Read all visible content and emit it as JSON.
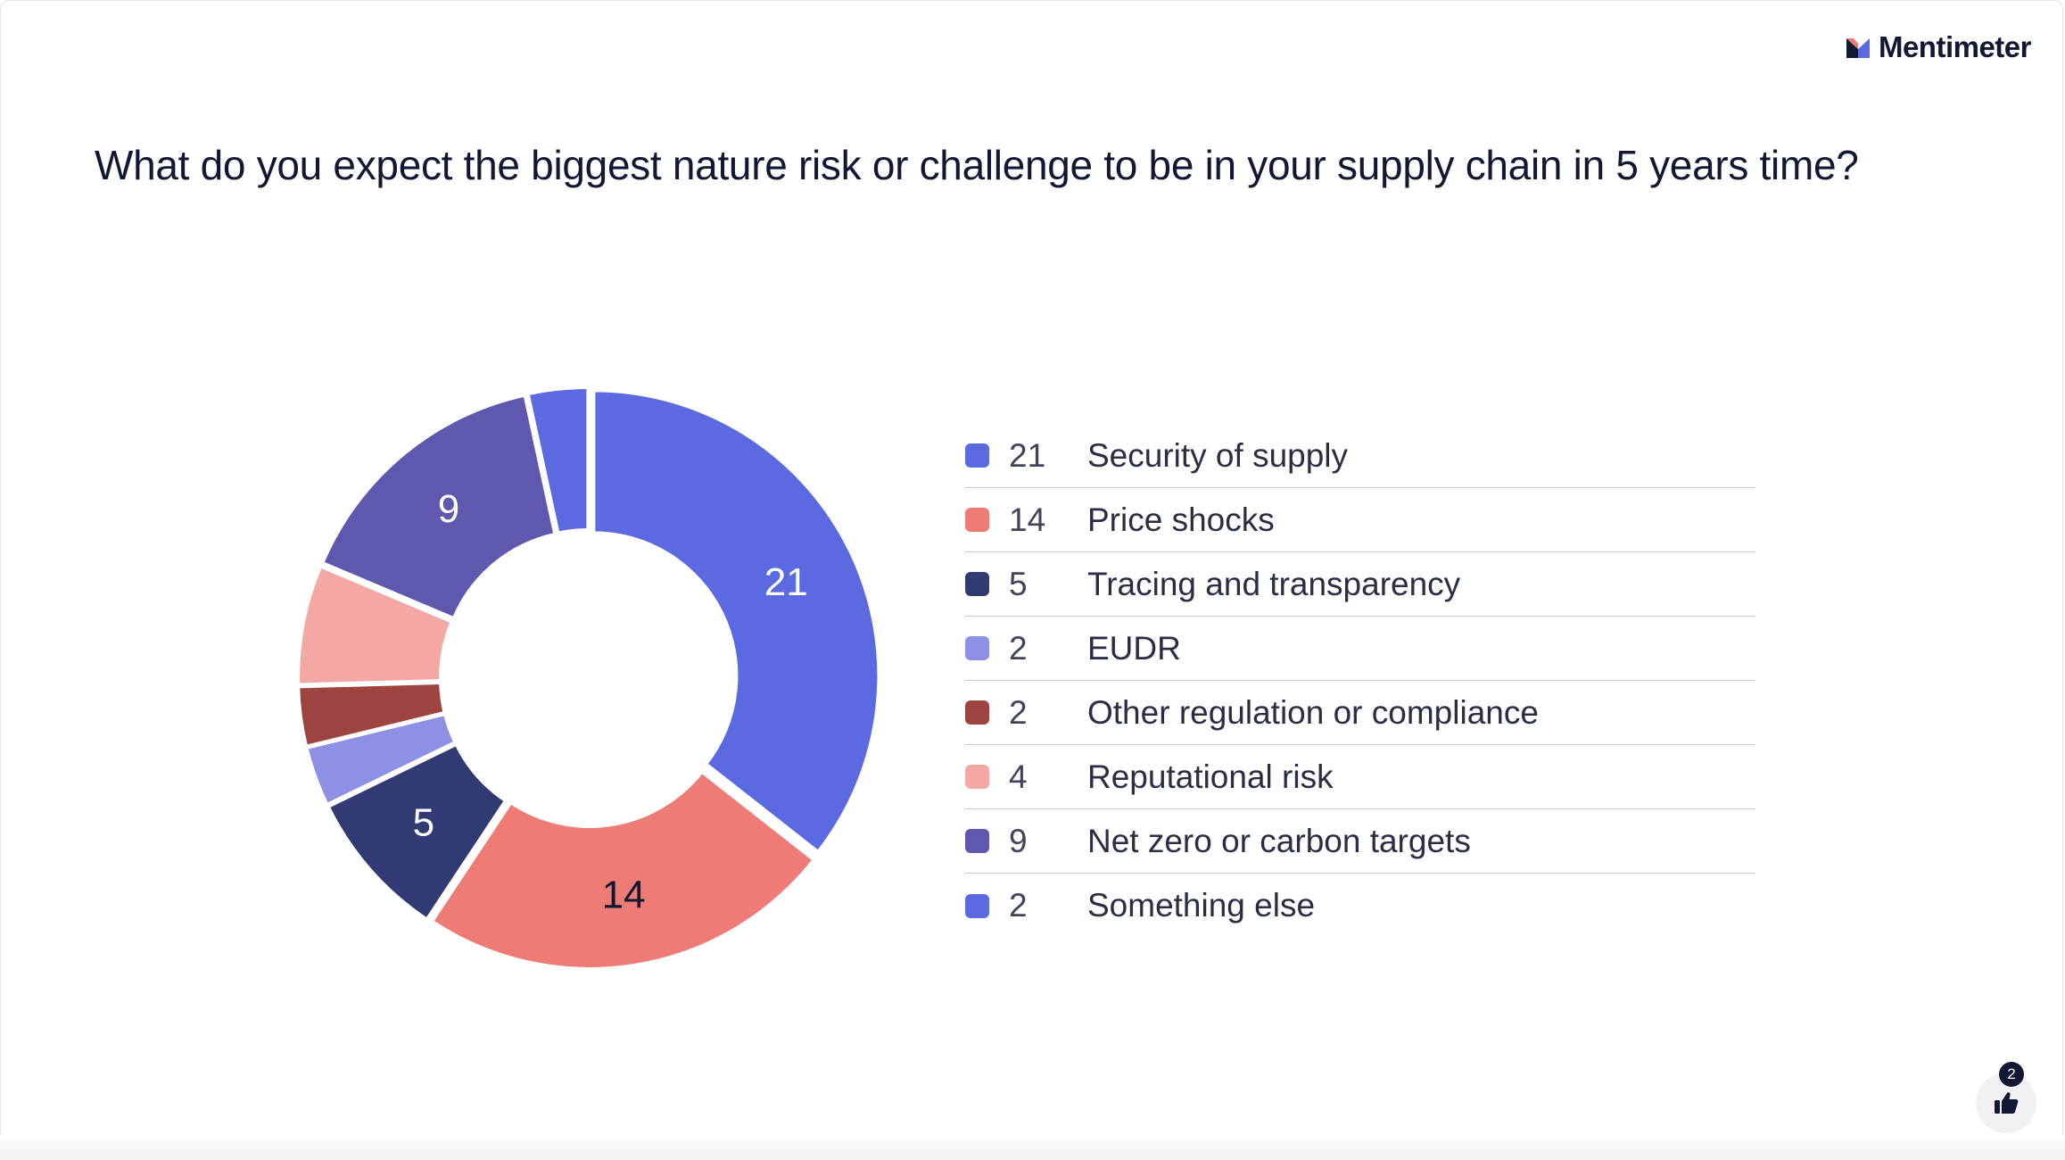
{
  "brand": {
    "name": "Mentimeter",
    "icon": "mentimeter-logo-icon"
  },
  "question": "What do you expect the biggest nature risk or challenge to be in your supply chain in 5 years time?",
  "reactions": {
    "icon": "thumbs-up-icon",
    "count": "2"
  },
  "chart_data": {
    "type": "pie",
    "style": "donut",
    "title": "",
    "legend_position": "right",
    "slices": [
      {
        "label": "Security of supply",
        "value": 21,
        "color": "#5B6AE0",
        "label_color": "#ffffff"
      },
      {
        "label": "Price shocks",
        "value": 14,
        "color": "#EE7B75",
        "label_color": "#101834"
      },
      {
        "label": "Tracing and transparency",
        "value": 5,
        "color": "#323A73",
        "label_color": "#ffffff"
      },
      {
        "label": "EUDR",
        "value": 2,
        "color": "#8E90E6",
        "label_color": "#101834"
      },
      {
        "label": "Other regulation or compliance",
        "value": 2,
        "color": "#9E4440",
        "label_color": "#ffffff"
      },
      {
        "label": "Reputational risk",
        "value": 4,
        "color": "#F3A8A4",
        "label_color": "#101834"
      },
      {
        "label": "Net zero or carbon targets",
        "value": 9,
        "color": "#5E59AE",
        "label_color": "#ffffff"
      },
      {
        "label": "Something else",
        "value": 2,
        "color": "#5B6AE0",
        "label_color": "#ffffff"
      }
    ]
  }
}
